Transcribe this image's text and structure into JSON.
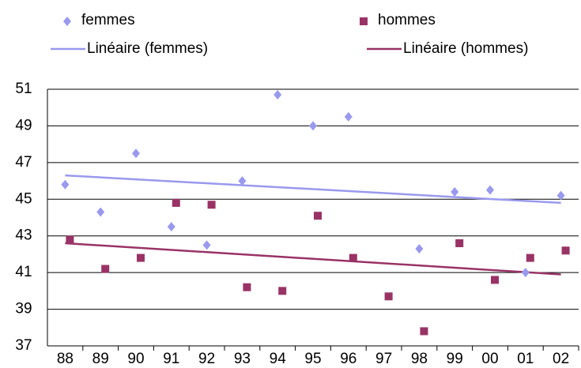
{
  "chart_data": {
    "type": "scatter",
    "categories": [
      "88",
      "89",
      "90",
      "91",
      "92",
      "93",
      "94",
      "95",
      "96",
      "97",
      "98",
      "99",
      "00",
      "01",
      "02"
    ],
    "series": [
      {
        "name": "femmes",
        "color": "#9999ee",
        "marker": "diamond",
        "values": [
          45.8,
          44.3,
          47.5,
          43.5,
          42.5,
          46.0,
          50.7,
          49.0,
          49.5,
          null,
          42.3,
          45.4,
          45.5,
          41.0,
          45.2
        ]
      },
      {
        "name": "hommes",
        "color": "#993366",
        "marker": "square",
        "values": [
          42.8,
          41.2,
          41.8,
          44.8,
          44.7,
          40.2,
          40.0,
          44.1,
          41.8,
          39.7,
          37.8,
          42.6,
          40.6,
          41.8,
          42.2
        ]
      }
    ],
    "trendlines": [
      {
        "name": "Linéaire (femmes)",
        "color": "#9999ee",
        "values": [
          46.3,
          44.8
        ]
      },
      {
        "name": "Linéaire (hommes)",
        "color": "#993366",
        "values": [
          42.6,
          40.9
        ]
      }
    ],
    "ylim": [
      37,
      51
    ],
    "yticks": [
      37,
      39,
      41,
      43,
      45,
      47,
      49,
      51
    ],
    "grid": true
  }
}
